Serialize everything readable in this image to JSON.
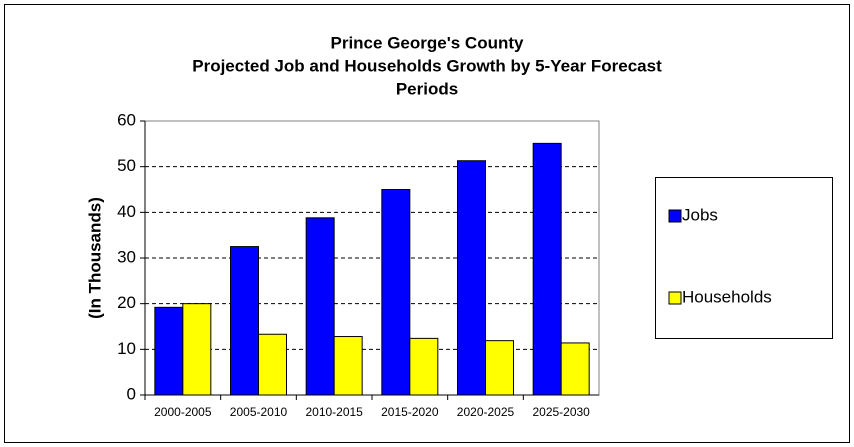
{
  "chart_data": {
    "type": "bar",
    "title": [
      "Prince George's County",
      "Projected Job and Households Growth by 5-Year Forecast",
      "Periods"
    ],
    "y_label": "(In Thousands)",
    "categories": [
      "2000-2005",
      "2005-2010",
      "2010-2015",
      "2015-2020",
      "2020-2025",
      "2025-2030"
    ],
    "series": [
      {
        "name": "Jobs",
        "color": "#0000ff",
        "values": [
          19.2,
          32.5,
          38.8,
          45,
          51.3,
          55.1
        ]
      },
      {
        "name": "Households",
        "color": "#ffff00",
        "values": [
          20,
          13.3,
          12.8,
          12.4,
          11.9,
          11.4
        ]
      }
    ],
    "ylim": [
      0,
      60
    ],
    "yticks": [
      0,
      10,
      20,
      30,
      40,
      50,
      60
    ],
    "grid": true,
    "legend": "right"
  }
}
